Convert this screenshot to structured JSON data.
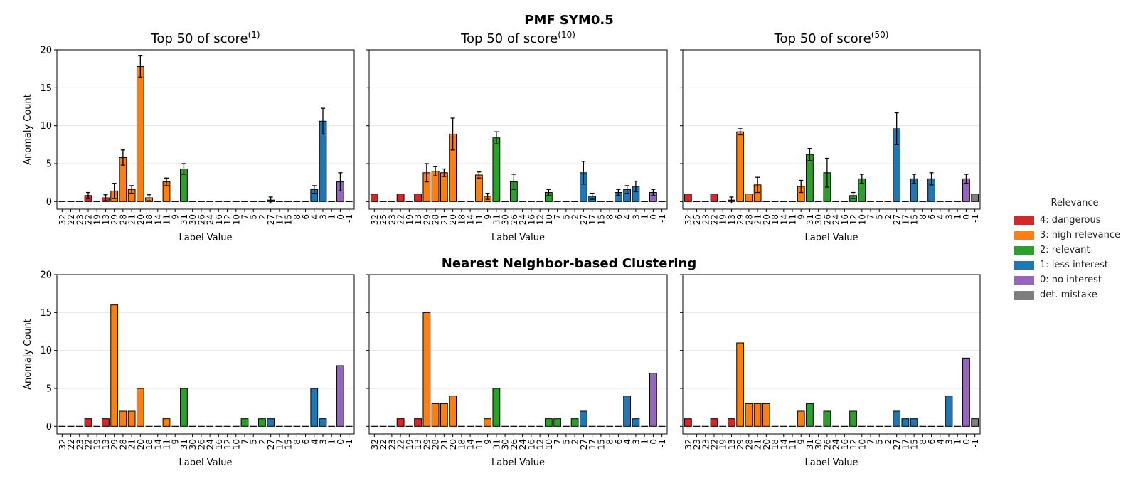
{
  "suptitle": "PMF SYM0.5",
  "row2_title": "Nearest Neighbor-based Clustering",
  "legend": {
    "title": "Relevance",
    "items": [
      {
        "label": "4: dangerous",
        "color": "#d62728"
      },
      {
        "label": "3: high relevance",
        "color": "#ff7f0e"
      },
      {
        "label": "2: relevant",
        "color": "#2ca02c"
      },
      {
        "label": "1: less interest",
        "color": "#1f77b4"
      },
      {
        "label": "0: no interest",
        "color": "#9467bd"
      },
      {
        "label": "det. mistake",
        "color": "#7f7f7f"
      }
    ]
  },
  "chart_data": [
    {
      "type": "bar",
      "title": "Top 50 of score",
      "title_superscript": "(1)",
      "xlabel": "Label Value",
      "ylabel": "Anomaly Count",
      "ylim": [
        -1,
        20
      ],
      "yticks": [
        0,
        5,
        10,
        15,
        20
      ],
      "grid": true,
      "categories": [
        "32",
        "22",
        "23",
        "22",
        "19",
        "13",
        "29",
        "28",
        "21",
        "20",
        "18",
        "14",
        "11",
        "9",
        "31",
        "30",
        "26",
        "24",
        "16",
        "12",
        "10",
        "7",
        "5",
        "2",
        "27",
        "17",
        "15",
        "8",
        "6",
        "4",
        "3",
        "1",
        "0",
        "-1"
      ],
      "relevance": [
        4,
        4,
        4,
        4,
        4,
        4,
        3,
        3,
        3,
        3,
        3,
        3,
        3,
        3,
        2,
        2,
        2,
        2,
        2,
        2,
        2,
        2,
        2,
        2,
        1,
        1,
        1,
        1,
        1,
        1,
        1,
        1,
        0,
        -1
      ],
      "values": [
        0,
        0,
        0,
        0.8,
        0,
        0.5,
        1.4,
        5.8,
        1.6,
        17.8,
        0.5,
        0,
        2.6,
        0,
        4.3,
        0,
        0,
        0,
        0,
        0,
        0,
        0,
        0,
        0,
        0.2,
        0,
        0,
        0,
        0,
        1.6,
        10.6,
        0,
        2.6,
        0
      ],
      "errors": [
        0,
        0,
        0,
        0.4,
        0,
        0.4,
        1.0,
        1.0,
        0.5,
        1.4,
        0.4,
        0,
        0.5,
        0,
        0.7,
        0,
        0,
        0,
        0,
        0,
        0,
        0,
        0,
        0,
        0.4,
        0,
        0,
        0,
        0,
        0.5,
        1.7,
        0,
        1.2,
        0
      ]
    },
    {
      "type": "bar",
      "title": "Top 50 of score",
      "title_superscript": "(10)",
      "xlabel": "Label Value",
      "ylabel": "",
      "ylim": [
        -1,
        20
      ],
      "yticks": [
        0,
        5,
        10,
        15,
        20
      ],
      "grid": true,
      "categories": [
        "32",
        "25",
        "23",
        "22",
        "19",
        "13",
        "29",
        "28",
        "21",
        "20",
        "18",
        "14",
        "11",
        "9",
        "31",
        "30",
        "26",
        "24",
        "16",
        "12",
        "10",
        "7",
        "5",
        "2",
        "27",
        "17",
        "15",
        "8",
        "6",
        "4",
        "3",
        "1",
        "0",
        "-1"
      ],
      "relevance": [
        4,
        4,
        4,
        4,
        4,
        4,
        3,
        3,
        3,
        3,
        3,
        3,
        3,
        3,
        2,
        2,
        2,
        2,
        2,
        2,
        2,
        2,
        2,
        2,
        1,
        1,
        1,
        1,
        1,
        1,
        1,
        1,
        0,
        -1
      ],
      "values": [
        1.0,
        0,
        0,
        1.0,
        0,
        1.0,
        3.8,
        4.0,
        3.8,
        8.9,
        0,
        0,
        3.5,
        0.7,
        8.4,
        0,
        2.6,
        0,
        0,
        0,
        1.2,
        0,
        0,
        0,
        3.8,
        0.7,
        0,
        0,
        1.2,
        1.6,
        2.0,
        0,
        1.2,
        0
      ],
      "errors": [
        0,
        0,
        0,
        0,
        0,
        0,
        1.2,
        0.6,
        0.5,
        2.1,
        0,
        0,
        0.4,
        0.4,
        0.8,
        0,
        1.0,
        0,
        0,
        0,
        0.4,
        0,
        0,
        0,
        1.5,
        0.4,
        0,
        0,
        0.4,
        0.5,
        0.7,
        0,
        0.4,
        0
      ]
    },
    {
      "type": "bar",
      "title": "Top 50 of score",
      "title_superscript": "(50)",
      "xlabel": "Label Value",
      "ylabel": "",
      "ylim": [
        -1,
        20
      ],
      "yticks": [
        0,
        5,
        10,
        15,
        20
      ],
      "grid": true,
      "categories": [
        "32",
        "25",
        "23",
        "22",
        "19",
        "13",
        "29",
        "28",
        "21",
        "20",
        "18",
        "14",
        "11",
        "9",
        "31",
        "30",
        "26",
        "24",
        "16",
        "12",
        "10",
        "7",
        "5",
        "2",
        "27",
        "17",
        "15",
        "8",
        "6",
        "4",
        "3",
        "1",
        "0",
        "-1"
      ],
      "relevance": [
        4,
        4,
        4,
        4,
        4,
        4,
        3,
        3,
        3,
        3,
        3,
        3,
        3,
        3,
        2,
        2,
        2,
        2,
        2,
        2,
        2,
        2,
        2,
        2,
        1,
        1,
        1,
        1,
        1,
        1,
        1,
        1,
        0,
        -1
      ],
      "values": [
        1.0,
        0,
        0,
        1.0,
        0,
        0.2,
        9.2,
        1.0,
        2.2,
        0,
        0,
        0,
        0,
        2.0,
        6.2,
        0,
        3.8,
        0,
        0,
        0.8,
        3.0,
        0,
        0,
        0,
        9.6,
        0,
        3.0,
        0,
        3.0,
        0,
        0,
        0,
        3.0,
        1.0
      ],
      "errors": [
        0,
        0,
        0,
        0,
        0,
        0.4,
        0.4,
        0,
        1.0,
        0,
        0,
        0,
        0,
        0.8,
        0.8,
        0,
        1.9,
        0,
        0,
        0.4,
        0.6,
        0,
        0,
        0,
        2.1,
        0,
        0.6,
        0,
        0.8,
        0,
        0,
        0,
        0.6,
        0
      ]
    },
    {
      "type": "bar",
      "title": "",
      "title_superscript": "",
      "xlabel": "Label Value",
      "ylabel": "Anomaly Count",
      "ylim": [
        -1,
        20
      ],
      "yticks": [
        0,
        5,
        10,
        15,
        20
      ],
      "grid": true,
      "categories": [
        "32",
        "22",
        "23",
        "22",
        "19",
        "13",
        "29",
        "28",
        "21",
        "20",
        "18",
        "14",
        "11",
        "9",
        "31",
        "30",
        "26",
        "24",
        "16",
        "12",
        "10",
        "7",
        "5",
        "2",
        "27",
        "17",
        "15",
        "8",
        "6",
        "4",
        "3",
        "1",
        "0",
        "-1"
      ],
      "relevance": [
        4,
        4,
        4,
        4,
        4,
        4,
        3,
        3,
        3,
        3,
        3,
        3,
        3,
        3,
        2,
        2,
        2,
        2,
        2,
        2,
        2,
        2,
        2,
        2,
        1,
        1,
        1,
        1,
        1,
        1,
        1,
        1,
        0,
        -1
      ],
      "values": [
        0,
        0,
        0,
        1,
        0,
        1,
        16,
        2,
        2,
        5,
        0,
        0,
        1,
        0,
        5,
        0,
        0,
        0,
        0,
        0,
        0,
        1,
        0,
        1,
        1,
        0,
        0,
        0,
        0,
        5,
        1,
        0,
        8,
        0
      ],
      "errors": []
    },
    {
      "type": "bar",
      "title": "",
      "title_superscript": "",
      "xlabel": "Label Value",
      "ylabel": "",
      "ylim": [
        -1,
        20
      ],
      "yticks": [
        0,
        5,
        10,
        15,
        20
      ],
      "grid": true,
      "categories": [
        "32",
        "22",
        "23",
        "22",
        "19",
        "13",
        "29",
        "28",
        "21",
        "20",
        "18",
        "14",
        "11",
        "9",
        "31",
        "30",
        "26",
        "24",
        "16",
        "12",
        "10",
        "7",
        "5",
        "2",
        "27",
        "17",
        "15",
        "8",
        "6",
        "4",
        "3",
        "1",
        "0",
        "-1"
      ],
      "relevance": [
        4,
        4,
        4,
        4,
        4,
        4,
        3,
        3,
        3,
        3,
        3,
        3,
        3,
        3,
        2,
        2,
        2,
        2,
        2,
        2,
        2,
        2,
        2,
        2,
        1,
        1,
        1,
        1,
        1,
        1,
        1,
        1,
        0,
        -1
      ],
      "values": [
        0,
        0,
        0,
        1,
        0,
        1,
        15,
        3,
        3,
        4,
        0,
        0,
        0,
        1,
        5,
        0,
        0,
        0,
        0,
        0,
        1,
        1,
        0,
        1,
        2,
        0,
        0,
        0,
        0,
        4,
        1,
        0,
        7,
        0
      ],
      "errors": []
    },
    {
      "type": "bar",
      "title": "",
      "title_superscript": "",
      "xlabel": "Label Value",
      "ylabel": "",
      "ylim": [
        -1,
        20
      ],
      "yticks": [
        0,
        5,
        10,
        15,
        20
      ],
      "grid": true,
      "categories": [
        "32",
        "23",
        "23",
        "22",
        "19",
        "13",
        "29",
        "28",
        "21",
        "20",
        "18",
        "14",
        "11",
        "9",
        "31",
        "30",
        "26",
        "24",
        "16",
        "12",
        "10",
        "7",
        "5",
        "2",
        "27",
        "17",
        "15",
        "8",
        "6",
        "4",
        "3",
        "1",
        "0",
        "-1"
      ],
      "relevance": [
        4,
        4,
        4,
        4,
        4,
        4,
        3,
        3,
        3,
        3,
        3,
        3,
        3,
        3,
        2,
        2,
        2,
        2,
        2,
        2,
        2,
        2,
        2,
        2,
        1,
        1,
        1,
        1,
        1,
        1,
        1,
        1,
        0,
        -1
      ],
      "values": [
        1,
        0,
        0,
        1,
        0,
        1,
        11,
        3,
        3,
        3,
        0,
        0,
        0,
        2,
        3,
        0,
        2,
        0,
        0,
        2,
        0,
        0,
        0,
        0,
        2,
        1,
        1,
        0,
        0,
        0,
        4,
        0,
        9,
        1
      ],
      "errors": []
    }
  ]
}
